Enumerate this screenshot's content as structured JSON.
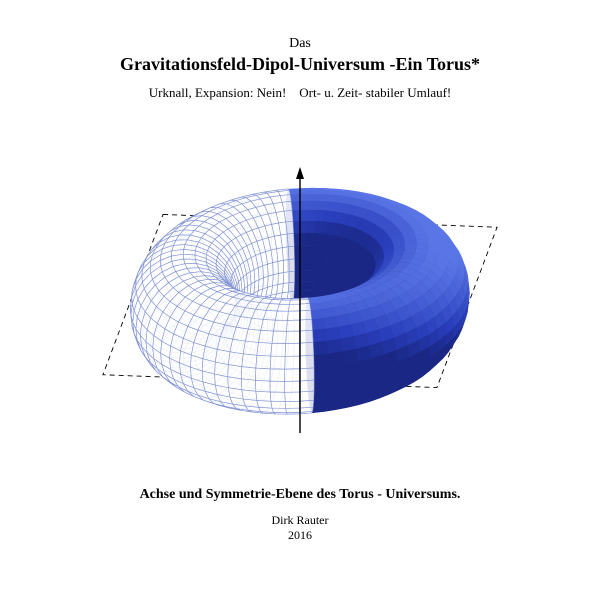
{
  "header": {
    "small_title": "Das",
    "main_title": "Gravitationsfeld-Dipol-Universum -Ein Torus*",
    "subtitle": "Urknall, Expansion: Nein! Ort- u. Zeit- stabiler Umlauf!"
  },
  "figure": {
    "type": "diagram",
    "description": "3D torus split: solid shaded half and wireframe half, with vertical axis and dashed bounding parallelogram",
    "solid_color_light": "#5a76e6",
    "solid_color_mid": "#2a3fbd",
    "solid_color_dark": "#111a66",
    "wire_color": "#7a8ccf",
    "axis_color": "#000000",
    "bbox_color": "#000000",
    "background": "#ffffff"
  },
  "caption": "Achse und Symmetrie-Ebene des Torus - Universums.",
  "author": "Dirk Rauter",
  "year": "2016"
}
